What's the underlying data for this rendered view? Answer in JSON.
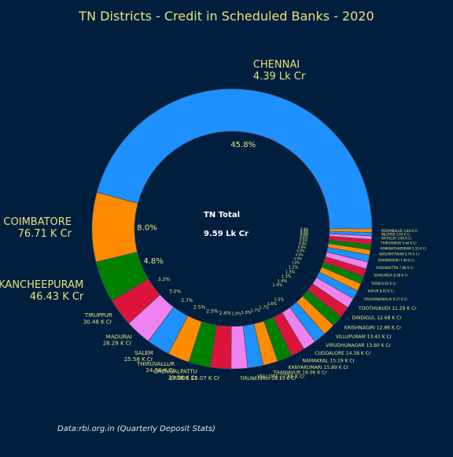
{
  "theme": {
    "background": "#001f3f",
    "text_color": "#e8e079",
    "slice_edge": "#3a4a5a",
    "palette": [
      "#1e90ff",
      "#ff8c00",
      "#008000",
      "#dc143c",
      "#ee82ee"
    ]
  },
  "footer": {
    "source": "Data:rbi.org.in (Quarterly Deposit Stats)"
  },
  "chart_data": {
    "type": "pie",
    "style": "donut",
    "title": "TN Districts - Credit in Scheduled Banks - 2020",
    "center_label": {
      "line1": "TN Total",
      "line2": "9.59 Lk Cr"
    },
    "start_angle_deg": 0,
    "direction": "counterclockwise",
    "slices": [
      {
        "name": "CHENNAI",
        "value": "4.39 Lk Cr",
        "pct": 45.8
      },
      {
        "name": "COIMBATORE",
        "value": "76.71 K Cr",
        "pct": 8.0
      },
      {
        "name": "KANCHEEPURAM",
        "value": "46.43 K Cr",
        "pct": 4.8
      },
      {
        "name": "TIRUPPUR",
        "value": "30.48 K Cr",
        "pct": 3.2
      },
      {
        "name": "MADURAI",
        "value": "28.29 K Cr",
        "pct": 3.0
      },
      {
        "name": "SALEM",
        "value": "25.58 K Cr",
        "pct": 2.7
      },
      {
        "name": "THIRUVALLUR",
        "value": "24.38 K Cr",
        "pct": 2.5
      },
      {
        "name": "CHENGALPATTU",
        "value": "23.56 K Cr",
        "pct": 2.5
      },
      {
        "name": "ERODE",
        "value": "23.07 K Cr",
        "pct": 2.4
      },
      {
        "name": "TIRUNELVELI",
        "value": "18.13 K Cr",
        "pct": 1.9
      },
      {
        "name": "VELLORE",
        "value": "17.66 K Cr",
        "pct": 1.8
      },
      {
        "name": "THANJAVUR",
        "value": "16.06 K Cr",
        "pct": 1.7
      },
      {
        "name": "KANYAKUMARI",
        "value": "15.89 K Cr",
        "pct": 1.7
      },
      {
        "name": "NAMAKKAL",
        "value": "15.19 K Cr",
        "pct": 1.6
      },
      {
        "name": "CUDDALORE",
        "value": "14.38 K Cr",
        "pct": 1.5
      },
      {
        "name": "VIRUDHUNAGAR",
        "value": "13.60 K Cr",
        "pct": 1.4
      },
      {
        "name": "VILLUPURAM",
        "value": "13.43 K Cr",
        "pct": 1.4
      },
      {
        "name": "KRISHNAGIRI",
        "value": "12.86 K Cr",
        "pct": 1.3
      },
      {
        "name": "DINDIGUL",
        "value": "12.68 K Cr",
        "pct": 1.3
      },
      {
        "name": "TOOTHUKUDI",
        "value": "11.29 K Cr",
        "pct": 1.2
      },
      {
        "name": "TIRUVANNAMALAI",
        "value": "9.27 K Cr",
        "pct": 1.0
      },
      {
        "name": "KARUR",
        "value": "8.93 K Cr",
        "pct": 0.9
      },
      {
        "name": "THENI",
        "value": "8.65 K Cr",
        "pct": 0.9
      },
      {
        "name": "SIVAGANGA",
        "value": "8.38 K Cr",
        "pct": 0.9
      },
      {
        "name": "PUDUKKOTTAI",
        "value": "7.86 K Cr",
        "pct": 0.8
      },
      {
        "name": "DHARMAPURI",
        "value": "7.46 K Cr",
        "pct": 0.8
      },
      {
        "name": "NAGAPATTINAM",
        "value": "5.74 K Cr",
        "pct": 0.6
      },
      {
        "name": "RAMANATHAPURAM",
        "value": "5.55 K Cr",
        "pct": 0.6
      },
      {
        "name": "THIRUVARUR",
        "value": "5.46 K Cr",
        "pct": 0.6
      },
      {
        "name": "ARIYALUR",
        "value": "3.96 K Cr",
        "pct": 0.4
      },
      {
        "name": "NILGIRIS",
        "value": "3.95 K Cr",
        "pct": 0.4
      },
      {
        "name": "PERAMBALUR",
        "value": "3.80 K Cr",
        "pct": 0.4
      }
    ]
  }
}
